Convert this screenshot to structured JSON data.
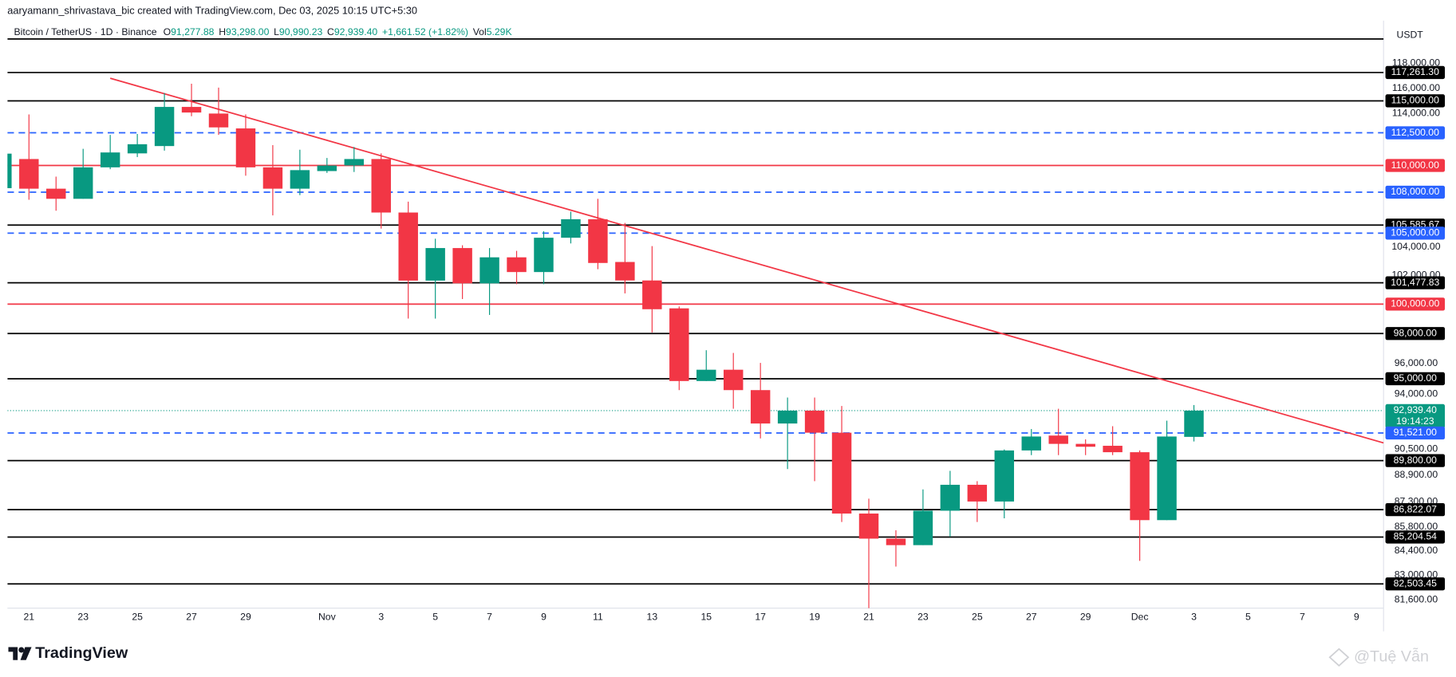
{
  "header": {
    "credit": "aaryamann_shrivastava_bic created with TradingView.com, Dec 03, 2025 10:15 UTC+5:30"
  },
  "brand": {
    "logo": "TradingView",
    "watermark": "@Tuệ Vẫn"
  },
  "chart_data": {
    "type": "candlestick",
    "legend": {
      "symbol": "Bitcoin / TetherUS · 1D · Binance",
      "open_label": "O",
      "open": "91,277.88",
      "high_label": "H",
      "high": "93,298.00",
      "low_label": "L",
      "low": "90,990.23",
      "close_label": "C",
      "close": "92,939.40",
      "change": "+1,661.52 (+1.82%)",
      "vol_label": "Vol",
      "vol": "5.29K"
    },
    "currency": "USDT",
    "log_scale": true,
    "grid": false,
    "up_color": "#089981",
    "down_color": "#f23645",
    "x": [
      "2025-10-20",
      "2025-10-21",
      "2025-10-22",
      "2025-10-23",
      "2025-10-24",
      "2025-10-25",
      "2025-10-26",
      "2025-10-27",
      "2025-10-28",
      "2025-10-29",
      "2025-10-30",
      "2025-10-31",
      "2025-11-01",
      "2025-11-02",
      "2025-11-03",
      "2025-11-04",
      "2025-11-05",
      "2025-11-06",
      "2025-11-07",
      "2025-11-08",
      "2025-11-09",
      "2025-11-10",
      "2025-11-11",
      "2025-11-12",
      "2025-11-13",
      "2025-11-14",
      "2025-11-15",
      "2025-11-16",
      "2025-11-17",
      "2025-11-18",
      "2025-11-19",
      "2025-11-20",
      "2025-11-21",
      "2025-11-22",
      "2025-11-23",
      "2025-11-24",
      "2025-11-25",
      "2025-11-26",
      "2025-11-27",
      "2025-11-28",
      "2025-11-29",
      "2025-11-30",
      "2025-12-01",
      "2025-12-02",
      "2025-12-03"
    ],
    "open": [
      108300,
      110490,
      108260,
      107510,
      109860,
      110920,
      111480,
      114520,
      114000,
      112840,
      109860,
      108260,
      109580,
      110000,
      110490,
      106500,
      101630,
      103930,
      101440,
      103270,
      102230,
      104670,
      106010,
      102940,
      101640,
      99710,
      94850,
      95590,
      94260,
      92120,
      92940,
      91540,
      86590,
      85110,
      84730,
      86760,
      88320,
      87310,
      90430,
      91360,
      90840,
      90720,
      90320,
      86200,
      91277.88
    ],
    "high": [
      111200,
      113930,
      109160,
      111270,
      112340,
      112410,
      115620,
      116360,
      116050,
      113930,
      111550,
      111200,
      110570,
      111410,
      110920,
      107300,
      104600,
      104130,
      103930,
      103730,
      105140,
      106560,
      107510,
      105740,
      104070,
      99840,
      96880,
      96700,
      96040,
      93780,
      93780,
      93240,
      87480,
      85600,
      88040,
      89170,
      88540,
      90490,
      91770,
      93060,
      91120,
      91950,
      90430,
      92300,
      93298
    ],
    "low": [
      108000,
      107440,
      106630,
      107510,
      109720,
      110640,
      111130,
      113790,
      112340,
      109230,
      106290,
      107780,
      109440,
      109510,
      105330,
      99010,
      99010,
      100350,
      99260,
      101380,
      101380,
      104260,
      102430,
      100740,
      98070,
      94260,
      94850,
      93060,
      91180,
      89280,
      88540,
      86090,
      80400,
      83490,
      84730,
      85220,
      86090,
      86310,
      90140,
      90140,
      90140,
      90140,
      83820,
      86200,
      90990.23
    ],
    "close": [
      110900,
      108260,
      107510,
      109860,
      110990,
      111620,
      114520,
      114080,
      112920,
      109860,
      108260,
      109650,
      110000,
      110490,
      106500,
      101630,
      103930,
      101440,
      103270,
      102230,
      104670,
      106010,
      102870,
      101640,
      99650,
      94850,
      95590,
      94260,
      92120,
      92940,
      91540,
      86590,
      85110,
      84730,
      86760,
      88320,
      87310,
      90430,
      91300,
      90840,
      90660,
      90320,
      86200,
      91300,
      92939.4
    ],
    "xlim": [
      "2025-10-20",
      "2025-12-10"
    ],
    "xticks": [
      {
        "value": "2025-10-21",
        "label": "21"
      },
      {
        "value": "2025-10-23",
        "label": "23"
      },
      {
        "value": "2025-10-25",
        "label": "25"
      },
      {
        "value": "2025-10-27",
        "label": "27"
      },
      {
        "value": "2025-10-29",
        "label": "29"
      },
      {
        "value": "2025-11-01",
        "label": "Nov"
      },
      {
        "value": "2025-11-03",
        "label": "3"
      },
      {
        "value": "2025-11-05",
        "label": "5"
      },
      {
        "value": "2025-11-07",
        "label": "7"
      },
      {
        "value": "2025-11-09",
        "label": "9"
      },
      {
        "value": "2025-11-11",
        "label": "11"
      },
      {
        "value": "2025-11-13",
        "label": "13"
      },
      {
        "value": "2025-11-15",
        "label": "15"
      },
      {
        "value": "2025-11-17",
        "label": "17"
      },
      {
        "value": "2025-11-19",
        "label": "19"
      },
      {
        "value": "2025-11-21",
        "label": "21"
      },
      {
        "value": "2025-11-23",
        "label": "23"
      },
      {
        "value": "2025-11-25",
        "label": "25"
      },
      {
        "value": "2025-11-27",
        "label": "27"
      },
      {
        "value": "2025-11-29",
        "label": "29"
      },
      {
        "value": "2025-12-01",
        "label": "Dec"
      },
      {
        "value": "2025-12-03",
        "label": "3"
      },
      {
        "value": "2025-12-05",
        "label": "5"
      },
      {
        "value": "2025-12-07",
        "label": "7"
      },
      {
        "value": "2025-12-09",
        "label": "9"
      }
    ],
    "ylim": [
      81140,
      121520
    ],
    "yticks": [
      {
        "value": 118000,
        "label": "118,000.00"
      },
      {
        "value": 116000,
        "label": "116,000.00"
      },
      {
        "value": 114000,
        "label": "114,000.00"
      },
      {
        "value": 104000,
        "label": "104,000.00"
      },
      {
        "value": 102000,
        "label": "102,000.00"
      },
      {
        "value": 96000,
        "label": "96,000.00"
      },
      {
        "value": 94000,
        "label": "94,000.00"
      },
      {
        "value": 90500,
        "label": "90,500.00"
      },
      {
        "value": 88900,
        "label": "88,900.00"
      },
      {
        "value": 87300,
        "label": "87,300.00"
      },
      {
        "value": 85800,
        "label": "85,800.00"
      },
      {
        "value": 84400,
        "label": "84,400.00"
      },
      {
        "value": 83000,
        "label": "83,000.00"
      },
      {
        "value": 81600,
        "label": "81,600.00"
      }
    ],
    "levels": [
      {
        "value": 120000,
        "color": "#000000",
        "style": "solid"
      },
      {
        "value": 117261.3,
        "label": "117,261.30",
        "color": "#000000",
        "style": "solid"
      },
      {
        "value": 115000,
        "label": "115,000.00",
        "color": "#000000",
        "style": "solid"
      },
      {
        "value": 112500,
        "label": "112,500.00",
        "color": "#2962ff",
        "style": "dashed"
      },
      {
        "value": 110000,
        "label": "110,000.00",
        "color": "#f23645",
        "style": "solid"
      },
      {
        "value": 108000,
        "label": "108,000.00",
        "color": "#2962ff",
        "style": "dashed"
      },
      {
        "value": 105585.67,
        "label": "105,585.67",
        "color": "#000000",
        "style": "solid"
      },
      {
        "value": 105000,
        "label": "105,000.00",
        "color": "#2962ff",
        "style": "dashed"
      },
      {
        "value": 101477.83,
        "label": "101,477.83",
        "color": "#000000",
        "style": "solid"
      },
      {
        "value": 100000,
        "label": "100,000.00",
        "color": "#f23645",
        "style": "solid"
      },
      {
        "value": 98000,
        "label": "98,000.00",
        "color": "#000000",
        "style": "solid"
      },
      {
        "value": 95000,
        "label": "95,000.00",
        "color": "#000000",
        "style": "solid"
      },
      {
        "value": 92939.4,
        "label": "92,939.40",
        "countdown": "19:14:23",
        "color": "#089981",
        "style": "dotted"
      },
      {
        "value": 91521,
        "label": "91,521.00",
        "color": "#2962ff",
        "style": "dashed"
      },
      {
        "value": 89800,
        "label": "89,800.00",
        "color": "#000000",
        "style": "solid"
      },
      {
        "value": 86822.07,
        "label": "86,822.07",
        "color": "#000000",
        "style": "solid"
      },
      {
        "value": 85204.54,
        "label": "85,204.54",
        "color": "#000000",
        "style": "solid"
      },
      {
        "value": 82503.45,
        "label": "82,503.45",
        "color": "#000000",
        "style": "solid"
      }
    ],
    "trendlines": [
      {
        "x": [
          "2025-10-24",
          "2025-12-10"
        ],
        "y": [
          116800,
          90900
        ],
        "color": "#f23645"
      }
    ]
  }
}
